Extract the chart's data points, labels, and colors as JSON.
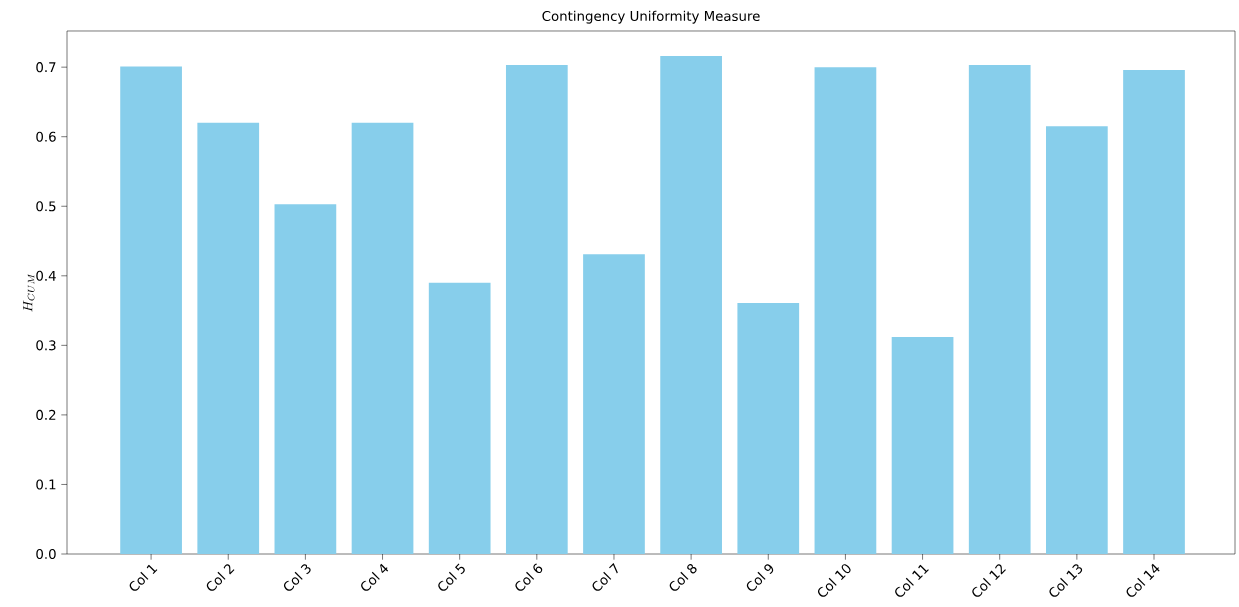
{
  "chart_data": {
    "type": "bar",
    "title": "Contingency Uniformity Measure",
    "ylabel": "H_{CUM}",
    "categories": [
      "Col 1",
      "Col 2",
      "Col 3",
      "Col 4",
      "Col 5",
      "Col 6",
      "Col 7",
      "Col 8",
      "Col 9",
      "Col 10",
      "Col 11",
      "Col 12",
      "Col 13",
      "Col 14"
    ],
    "values": [
      0.701,
      0.62,
      0.503,
      0.62,
      0.39,
      0.703,
      0.431,
      0.716,
      0.361,
      0.7,
      0.312,
      0.703,
      0.615,
      0.696
    ],
    "color": "#87ceeb",
    "ylim": [
      0,
      0.752
    ],
    "yticks": [
      {
        "value": 0,
        "label": "0.0"
      },
      0.1,
      0.2,
      0.3,
      0.4,
      0.5,
      0.6,
      0.7
    ],
    "grid": false
  }
}
